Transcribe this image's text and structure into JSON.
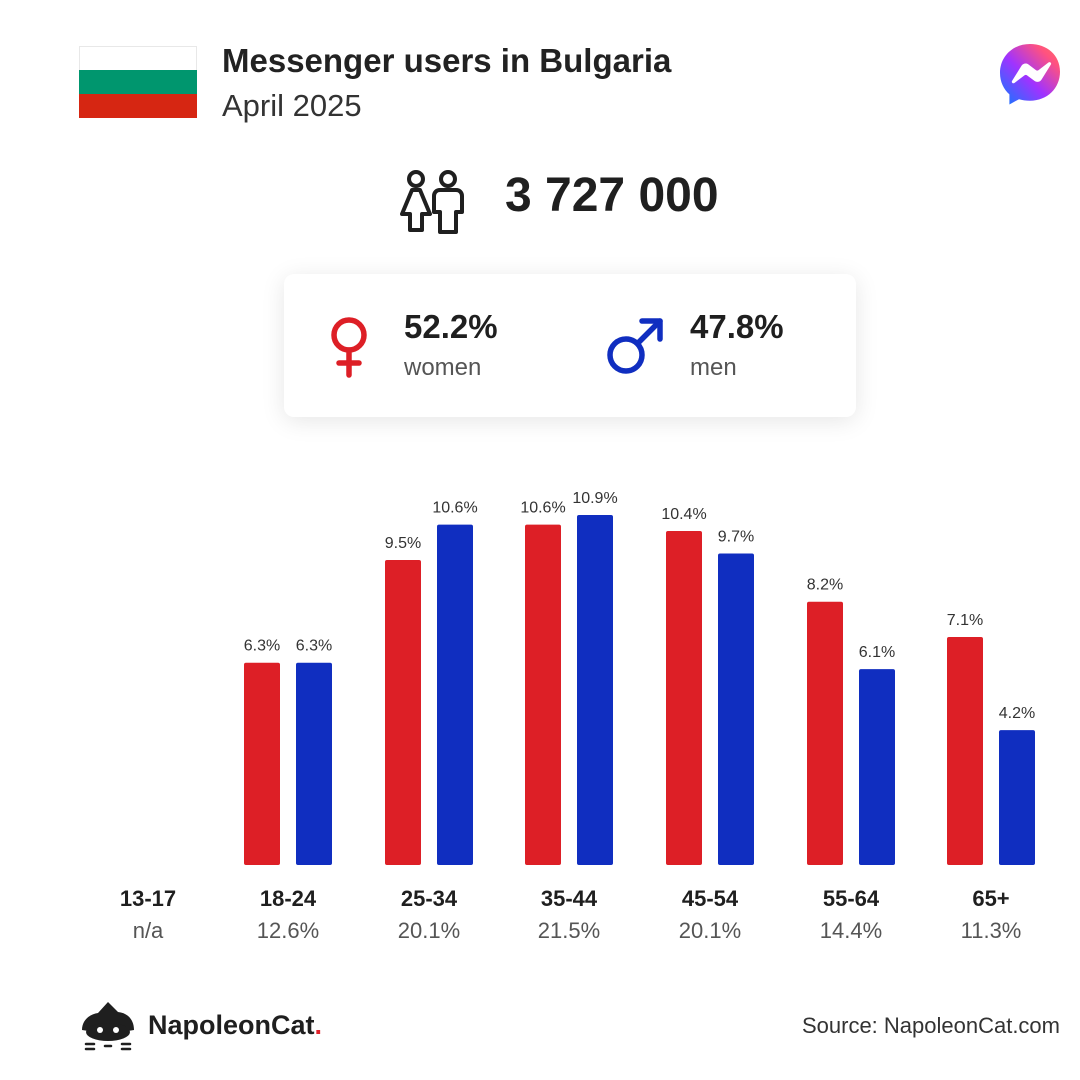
{
  "header": {
    "title": "Messenger users in Bulgaria",
    "subtitle": "April 2025",
    "flag_colors": [
      "#ffffff",
      "#00966e",
      "#d62612"
    ],
    "logo_icon": "messenger-icon"
  },
  "total": {
    "value": "3 727 000",
    "icon": "people-icon"
  },
  "gender": {
    "women": {
      "pct": "52.2%",
      "label": "women",
      "color": "#dd1f26",
      "icon": "female-icon"
    },
    "men": {
      "pct": "47.8%",
      "label": "men",
      "color": "#102ec0",
      "icon": "male-icon"
    }
  },
  "chart_data": {
    "type": "bar",
    "categories": [
      "13-17",
      "18-24",
      "25-34",
      "35-44",
      "45-54",
      "55-64",
      "65+"
    ],
    "category_shares": [
      "n/a",
      "12.6%",
      "20.1%",
      "21.5%",
      "20.1%",
      "14.4%",
      "11.3%"
    ],
    "series": [
      {
        "values": [
          null,
          6.3,
          9.5,
          10.6,
          10.4,
          8.2,
          7.1
        ],
        "labels": [
          "",
          "6.3%",
          "9.5%",
          "10.6%",
          "10.4%",
          "8.2%",
          "7.1%"
        ],
        "color": "#dd1f26"
      },
      {
        "values": [
          null,
          6.3,
          10.6,
          10.9,
          9.7,
          6.1,
          4.2
        ],
        "labels": [
          "",
          "6.3%",
          "10.6%",
          "10.9%",
          "9.7%",
          "6.1%",
          "4.2%"
        ],
        "color": "#102ec0"
      }
    ],
    "ylim": [
      0,
      10.9
    ],
    "grid": false
  },
  "footer": {
    "brand_name": "NapoleonCat",
    "brand_dot": ".",
    "brand_icon": "napoleoncat-logo-icon",
    "source": "Source: NapoleonCat.com"
  }
}
